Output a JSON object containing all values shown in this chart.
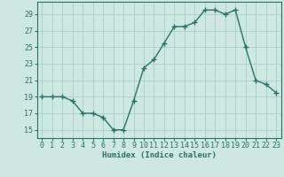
{
  "x": [
    0,
    1,
    2,
    3,
    4,
    5,
    6,
    7,
    8,
    9,
    10,
    11,
    12,
    13,
    14,
    15,
    16,
    17,
    18,
    19,
    20,
    21,
    22,
    23
  ],
  "y": [
    19,
    19,
    19,
    18.5,
    17,
    17,
    16.5,
    15,
    15,
    18.5,
    22.5,
    23.5,
    25.5,
    27.5,
    27.5,
    28,
    29.5,
    29.5,
    29,
    29.5,
    25,
    21,
    20.5,
    19.5
  ],
  "line_color": "#2d7068",
  "marker_color": "#2d7068",
  "bg_color": "#cce8e0",
  "grid_color": "#aacfc7",
  "xlabel": "Humidex (Indice chaleur)",
  "xlim": [
    -0.5,
    23.5
  ],
  "ylim": [
    14.0,
    30.5
  ],
  "yticks": [
    15,
    17,
    19,
    21,
    23,
    25,
    27,
    29
  ],
  "xticks": [
    0,
    1,
    2,
    3,
    4,
    5,
    6,
    7,
    8,
    9,
    10,
    11,
    12,
    13,
    14,
    15,
    16,
    17,
    18,
    19,
    20,
    21,
    22,
    23
  ],
  "xlabel_fontsize": 6.5,
  "tick_fontsize": 6.0,
  "line_width": 1.0,
  "marker_size": 4
}
